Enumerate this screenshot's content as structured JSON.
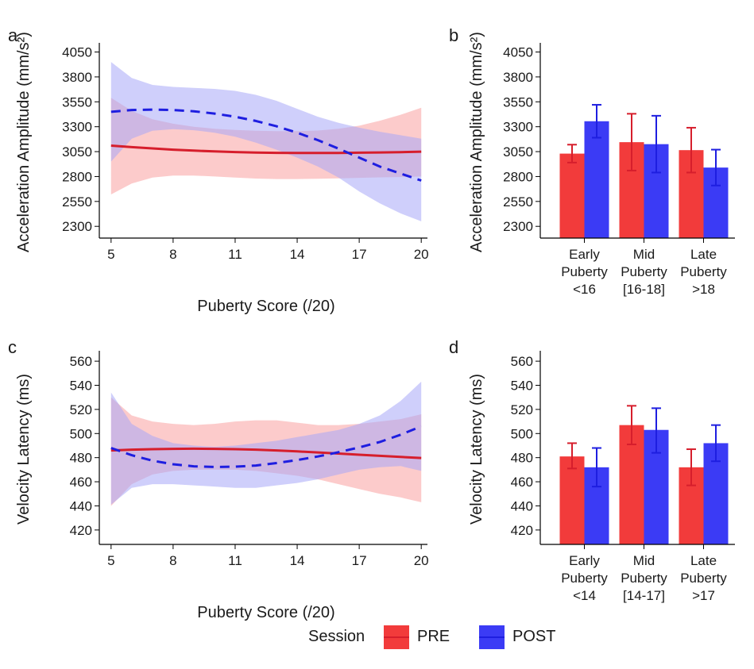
{
  "colors": {
    "pre": "#f23b3b",
    "post": "#3b3bf5",
    "pre_line": "#d61e2c",
    "post_line": "#1e1ee0",
    "pre_band": "#f9a0a0",
    "post_band": "#a8a8f7"
  },
  "legend": {
    "title": "Session",
    "items": [
      {
        "label": "PRE",
        "color": "#f23b3b"
      },
      {
        "label": "POST",
        "color": "#3b3bf5"
      }
    ],
    "placement": "bottom"
  },
  "chart_data": [
    {
      "panel": "a",
      "type": "line",
      "xlabel": "Puberty Score (/20)",
      "ylabel": "Acceleration Amplitude (mm/s²)",
      "xlim": [
        4.7,
        20.3
      ],
      "ylim": [
        2230,
        4110
      ],
      "xticks": [
        5,
        8,
        11,
        14,
        17,
        20
      ],
      "yticks": [
        2300,
        2550,
        2800,
        3050,
        3300,
        3550,
        3800,
        4050
      ],
      "grid": false,
      "series": [
        {
          "name": "PRE",
          "style": "solid",
          "x": [
            5,
            6,
            7,
            8,
            9,
            10,
            11,
            12,
            13,
            14,
            15,
            16,
            17,
            18,
            19,
            20
          ],
          "y": [
            3110,
            3095,
            3082,
            3070,
            3060,
            3052,
            3046,
            3041,
            3038,
            3036,
            3036,
            3037,
            3039,
            3042,
            3045,
            3050
          ],
          "lower": [
            2620,
            2730,
            2790,
            2810,
            2810,
            2800,
            2790,
            2780,
            2775,
            2775,
            2778,
            2782,
            2787,
            2792,
            2795,
            2800
          ],
          "upper": [
            3590,
            3460,
            3375,
            3330,
            3300,
            3280,
            3268,
            3260,
            3255,
            3255,
            3262,
            3280,
            3310,
            3360,
            3420,
            3490
          ]
        },
        {
          "name": "POST",
          "style": "dashed",
          "x": [
            5,
            6,
            7,
            8,
            9,
            10,
            11,
            12,
            13,
            14,
            15,
            16,
            17,
            18,
            19,
            20
          ],
          "y": [
            3450,
            3468,
            3472,
            3468,
            3455,
            3432,
            3400,
            3358,
            3305,
            3240,
            3165,
            3080,
            2990,
            2900,
            2830,
            2760
          ],
          "lower": [
            2950,
            3180,
            3260,
            3275,
            3265,
            3240,
            3200,
            3140,
            3070,
            2990,
            2900,
            2790,
            2650,
            2530,
            2430,
            2350
          ],
          "upper": [
            3950,
            3790,
            3720,
            3700,
            3690,
            3680,
            3660,
            3620,
            3560,
            3480,
            3400,
            3340,
            3290,
            3250,
            3215,
            3180
          ]
        }
      ]
    },
    {
      "panel": "b",
      "type": "bar",
      "ylabel": "Acceleration Amplitude (mm/s²)",
      "ylim": [
        2230,
        4110
      ],
      "yticks": [
        2300,
        2550,
        2800,
        3050,
        3300,
        3550,
        3800,
        4050
      ],
      "categories": [
        [
          "Early",
          "Puberty",
          "<16"
        ],
        [
          "Mid",
          "Puberty",
          "[16-18]"
        ],
        [
          "Late",
          "Puberty",
          ">18"
        ]
      ],
      "series": [
        {
          "name": "PRE",
          "values": [
            3030,
            3145,
            3065
          ],
          "err_low": [
            2940,
            2860,
            2840
          ],
          "err_high": [
            3120,
            3430,
            3290
          ]
        },
        {
          "name": "POST",
          "values": [
            3355,
            3125,
            2890
          ],
          "err_low": [
            3190,
            2840,
            2710
          ],
          "err_high": [
            3520,
            3410,
            3070
          ]
        }
      ]
    },
    {
      "panel": "c",
      "type": "line",
      "xlabel": "Puberty Score (/20)",
      "ylabel": "Velocity Latency (ms)",
      "xlim": [
        4.7,
        20.3
      ],
      "ylim": [
        412,
        566
      ],
      "xticks": [
        5,
        8,
        11,
        14,
        17,
        20
      ],
      "yticks": [
        420,
        440,
        460,
        480,
        500,
        520,
        540,
        560
      ],
      "grid": false,
      "series": [
        {
          "name": "PRE",
          "style": "solid",
          "x": [
            5,
            6,
            7,
            8,
            9,
            10,
            11,
            12,
            13,
            14,
            15,
            16,
            17,
            18,
            19,
            20
          ],
          "y": [
            486,
            486.6,
            487,
            487.3,
            487.4,
            487.3,
            487,
            486.6,
            486,
            485.2,
            484.3,
            483.4,
            482.4,
            481.5,
            480.6,
            479.7
          ],
          "lower": [
            440,
            458,
            466,
            469,
            470,
            470,
            470,
            469,
            467,
            465,
            462,
            458,
            454,
            450,
            447,
            443
          ],
          "upper": [
            530,
            515,
            510,
            508,
            507,
            508,
            510,
            511,
            511,
            509,
            507,
            507,
            508,
            510,
            512,
            516
          ]
        },
        {
          "name": "POST",
          "style": "dashed",
          "x": [
            5,
            6,
            7,
            8,
            9,
            10,
            11,
            12,
            13,
            14,
            15,
            16,
            17,
            18,
            19,
            20
          ],
          "y": [
            488,
            482,
            477.5,
            474.5,
            472.8,
            472.3,
            472.5,
            473.5,
            475.5,
            478,
            481,
            484.5,
            488.5,
            493,
            499,
            506
          ],
          "lower": [
            441,
            455,
            458,
            458,
            457,
            456,
            455,
            455,
            457,
            459,
            462,
            466,
            470,
            472,
            473,
            469
          ],
          "upper": [
            534,
            508,
            498,
            492,
            490,
            489,
            490,
            492,
            494,
            497,
            500,
            503,
            508,
            515,
            527,
            543
          ]
        }
      ]
    },
    {
      "panel": "d",
      "type": "bar",
      "ylabel": "Velocity Latency (ms)",
      "ylim": [
        412,
        566
      ],
      "yticks": [
        420,
        440,
        460,
        480,
        500,
        520,
        540,
        560
      ],
      "categories": [
        [
          "Early",
          "Puberty",
          "<14"
        ],
        [
          "Mid",
          "Puberty",
          "[14-17]"
        ],
        [
          "Late",
          "Puberty",
          ">17"
        ]
      ],
      "series": [
        {
          "name": "PRE",
          "values": [
            481,
            507,
            472
          ],
          "err_low": [
            471,
            491,
            457
          ],
          "err_high": [
            492,
            523,
            487
          ]
        },
        {
          "name": "POST",
          "values": [
            472,
            503,
            492
          ],
          "err_low": [
            456,
            484,
            477
          ],
          "err_high": [
            488,
            521,
            507
          ]
        }
      ]
    }
  ]
}
